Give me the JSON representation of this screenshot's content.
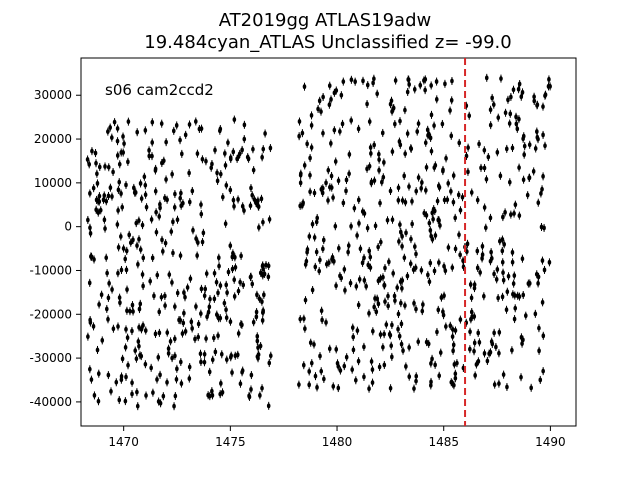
{
  "chart_data": {
    "type": "scatter",
    "title_line1": "AT2019gg  ATLAS19adw",
    "title_line2": "19.484cyan_ATLAS Unclassified z= -99.0",
    "annotation": "s06 cam2ccd2",
    "xlabel": "",
    "ylabel": "",
    "xlim": [
      1468.0,
      1491.2
    ],
    "ylim": [
      -45500,
      38500
    ],
    "xticks": [
      1470,
      1475,
      1480,
      1485,
      1490
    ],
    "yticks": [
      -40000,
      -30000,
      -20000,
      -10000,
      0,
      10000,
      20000,
      30000
    ],
    "vline": {
      "x": 1486.0,
      "color": "#d62728",
      "style": "dashed"
    },
    "marker_color": "#000000",
    "grid": false,
    "segments": [
      {
        "x_start": 1468.3,
        "x_end": 1476.9,
        "count": 420,
        "y_min": -41000,
        "y_max": 24500
      },
      {
        "x_start": 1478.2,
        "x_end": 1490.0,
        "count": 560,
        "y_min": -37000,
        "y_max": 34000
      }
    ]
  }
}
